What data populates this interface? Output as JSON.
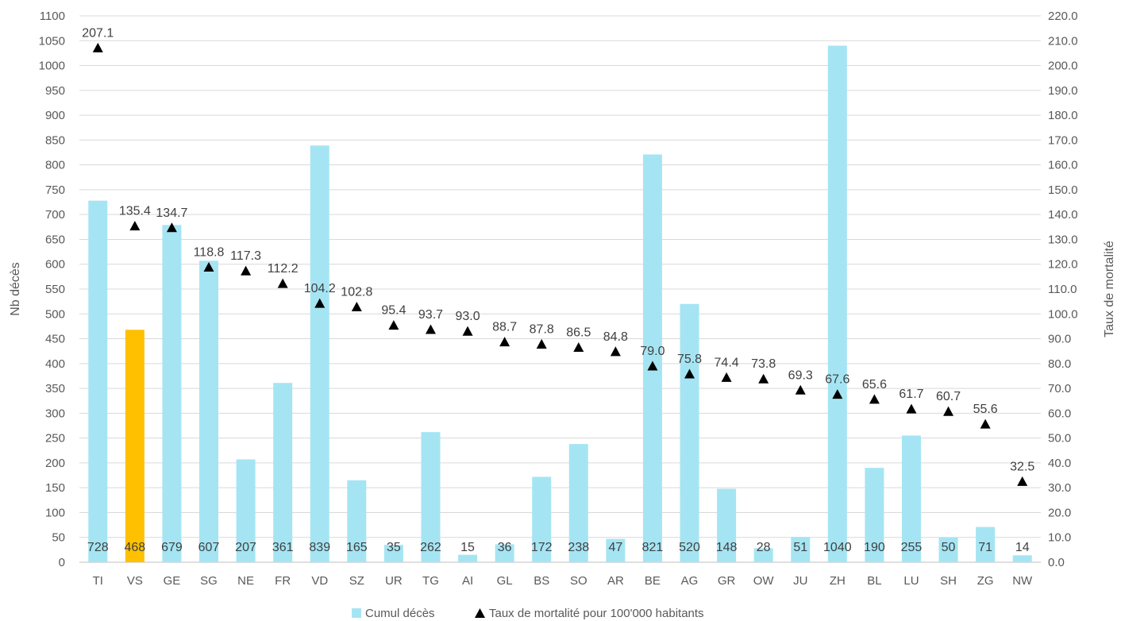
{
  "chart_data": {
    "type": "bar",
    "categories": [
      "TI",
      "VS",
      "GE",
      "SG",
      "NE",
      "FR",
      "VD",
      "SZ",
      "UR",
      "TG",
      "AI",
      "GL",
      "BS",
      "SO",
      "AR",
      "BE",
      "AG",
      "GR",
      "OW",
      "JU",
      "ZH",
      "BL",
      "LU",
      "SH",
      "ZG",
      "NW"
    ],
    "highlight_category": "VS",
    "series": [
      {
        "name": "Cumul décès",
        "kind": "bar",
        "axis": "left",
        "color": "#A5E5F3",
        "highlight_color": "#FFC000",
        "values": [
          728,
          468,
          679,
          607,
          207,
          361,
          839,
          165,
          35,
          262,
          15,
          36,
          172,
          238,
          47,
          821,
          520,
          148,
          28,
          51,
          1040,
          190,
          255,
          50,
          71,
          14
        ]
      },
      {
        "name": "Taux de mortalité pour 100'000 habitants",
        "kind": "marker",
        "marker": "triangle",
        "axis": "right",
        "color": "#000000",
        "values": [
          207.1,
          135.4,
          134.7,
          118.8,
          117.3,
          112.2,
          104.2,
          102.8,
          95.4,
          93.7,
          93.0,
          88.7,
          87.8,
          86.5,
          84.8,
          79.0,
          75.8,
          74.4,
          73.8,
          69.3,
          67.6,
          65.6,
          61.7,
          60.7,
          55.6,
          32.5
        ]
      }
    ],
    "bar_labels": [
      "728",
      "468",
      "679",
      "607",
      "207",
      "361",
      "839",
      "165",
      "35",
      "262",
      "15",
      "36",
      "172",
      "238",
      "47",
      "821",
      "520",
      "148",
      "28",
      "51",
      "1040",
      "190",
      "255",
      "50",
      "71",
      "14"
    ],
    "point_labels": [
      "207.1",
      "135.4",
      "134.7",
      "118.8",
      "117.3",
      "112.2",
      "104.2",
      "102.8",
      "95.4",
      "93.7",
      "93.0",
      "88.7",
      "87.8",
      "86.5",
      "84.8",
      "79.0",
      "75.8",
      "74.4",
      "73.8",
      "69.3",
      "67.6",
      "65.6",
      "61.7",
      "60.7",
      "55.6",
      "32.5"
    ],
    "title": "",
    "ylabel": "Nb décès",
    "y2label": "Taux de mortalité",
    "ylim": [
      0,
      1100
    ],
    "y2lim": [
      0,
      220
    ],
    "yticks": [
      "0",
      "50",
      "100",
      "150",
      "200",
      "250",
      "300",
      "350",
      "400",
      "450",
      "500",
      "550",
      "600",
      "650",
      "700",
      "750",
      "800",
      "850",
      "900",
      "950",
      "1000",
      "1050",
      "1100"
    ],
    "y2ticks": [
      "0.0",
      "10.0",
      "20.0",
      "30.0",
      "40.0",
      "50.0",
      "60.0",
      "70.0",
      "80.0",
      "90.0",
      "100.0",
      "110.0",
      "120.0",
      "130.0",
      "140.0",
      "150.0",
      "160.0",
      "170.0",
      "180.0",
      "190.0",
      "200.0",
      "210.0",
      "220.0"
    ],
    "grid": true,
    "legend_position": "bottom",
    "legend": [
      {
        "label": "Cumul décès",
        "symbol": "square",
        "color": "#A5E5F3"
      },
      {
        "label": "Taux de mortalité pour 100'000 habitants",
        "symbol": "triangle",
        "color": "#000000"
      }
    ]
  }
}
